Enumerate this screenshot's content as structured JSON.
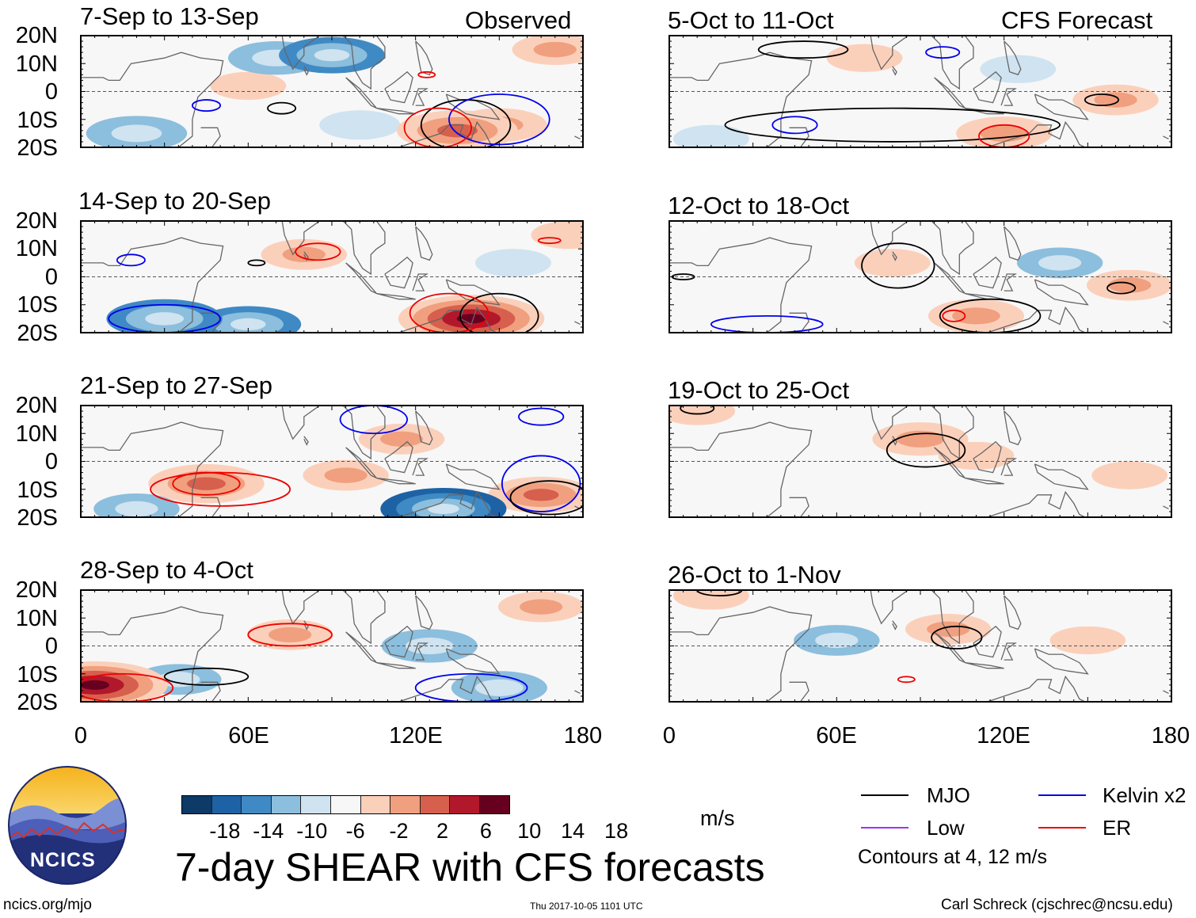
{
  "header": {
    "observed_label": "Observed",
    "forecast_label": "CFS Forecast"
  },
  "panels": [
    {
      "title": "7-Sep to 13-Sep"
    },
    {
      "title": "14-Sep to 20-Sep"
    },
    {
      "title": "21-Sep to 27-Sep"
    },
    {
      "title": "28-Sep to 4-Oct"
    },
    {
      "title": "5-Oct to 11-Oct"
    },
    {
      "title": "12-Oct to 18-Oct"
    },
    {
      "title": "19-Oct to 25-Oct"
    },
    {
      "title": "26-Oct to 1-Nov"
    }
  ],
  "axes": {
    "lat_labels": [
      "20N",
      "10N",
      "0",
      "10S",
      "20S"
    ],
    "lon_labels": [
      "0",
      "60E",
      "120E",
      "180"
    ]
  },
  "colorbar": {
    "labels": [
      "-18",
      "-14",
      "-10",
      "-6",
      "-2",
      "2",
      "6",
      "10",
      "14",
      "18"
    ],
    "colors": [
      "#0d3a66",
      "#1d62a5",
      "#3f8ac4",
      "#8cbedd",
      "#cfe3f0",
      "#f7f7f7",
      "#fbd0bb",
      "#f0a07f",
      "#d6604d",
      "#b2182b",
      "#67001f"
    ],
    "units": "m/s"
  },
  "title": "7-day SHEAR with CFS forecasts",
  "legend": {
    "items": [
      {
        "label": "MJO",
        "color": "#000000"
      },
      {
        "label": "Kelvin x2",
        "color": "#0000ee"
      },
      {
        "label": "Low",
        "color": "#9933ff"
      },
      {
        "label": "ER",
        "color": "#ee0000"
      }
    ],
    "note": "Contours at 4, 12 m/s"
  },
  "logo": {
    "text": "NCICS"
  },
  "footer": {
    "left": "ncics.org/mjo",
    "center": "Thu 2017-10-05 1101 UTC",
    "right": "Carl Schreck (cjschrec@ncsu.edu)"
  },
  "chart_data": {
    "type": "heatmap",
    "variable": "7-day vertical wind shear anomaly",
    "units": "m/s",
    "x_range": [
      0,
      180
    ],
    "y_range": [
      -20,
      20
    ],
    "x_ticks": [
      "0",
      "60E",
      "120E",
      "180"
    ],
    "y_ticks": [
      "20N",
      "10N",
      "0",
      "10S",
      "20S"
    ],
    "levels": [
      -18,
      -14,
      -10,
      -6,
      -2,
      2,
      6,
      10,
      14,
      18
    ],
    "contour_levels": [
      4,
      12
    ],
    "panels": [
      {
        "title": "7-Sep to 13-Sep",
        "source": "Observed",
        "anomalies": [
          {
            "lon": 90,
            "lat": 13,
            "value": -10
          },
          {
            "lon": 70,
            "lat": 12,
            "value": -8
          },
          {
            "lon": 20,
            "lat": -15,
            "value": -9
          },
          {
            "lon": 135,
            "lat": -14,
            "value": 13
          },
          {
            "lon": 150,
            "lat": -12,
            "value": 8
          },
          {
            "lon": 100,
            "lat": -12,
            "value": -5
          },
          {
            "lon": 60,
            "lat": 2,
            "value": 4
          },
          {
            "lon": 170,
            "lat": 15,
            "value": 6
          }
        ],
        "contours": [
          {
            "type": "MJO",
            "lon": 72,
            "lat": -6,
            "rx": 5,
            "ry": 2
          },
          {
            "type": "MJO",
            "lon": 138,
            "lat": -12,
            "rx": 16,
            "ry": 9
          },
          {
            "type": "Kelvin",
            "lon": 45,
            "lat": -5,
            "rx": 5,
            "ry": 2
          },
          {
            "type": "Kelvin",
            "lon": 150,
            "lat": -10,
            "rx": 18,
            "ry": 9
          },
          {
            "type": "ER",
            "lon": 128,
            "lat": -13,
            "rx": 12,
            "ry": 7
          },
          {
            "type": "ER",
            "lon": 124,
            "lat": 6,
            "rx": 3,
            "ry": 1
          }
        ]
      },
      {
        "title": "14-Sep to 20-Sep",
        "source": "Observed",
        "anomalies": [
          {
            "lon": 140,
            "lat": -15,
            "value": 18
          },
          {
            "lon": 80,
            "lat": 8,
            "value": 6
          },
          {
            "lon": 60,
            "lat": -17,
            "value": -10
          },
          {
            "lon": 30,
            "lat": -15,
            "value": -12
          },
          {
            "lon": 155,
            "lat": 5,
            "value": -4
          },
          {
            "lon": 175,
            "lat": 15,
            "value": 4
          }
        ],
        "contours": [
          {
            "type": "MJO",
            "lon": 150,
            "lat": -14,
            "rx": 14,
            "ry": 8
          },
          {
            "type": "MJO",
            "lon": 63,
            "lat": 5,
            "rx": 3,
            "ry": 1
          },
          {
            "type": "ER",
            "lon": 132,
            "lat": -13,
            "rx": 14,
            "ry": 7
          },
          {
            "type": "ER",
            "lon": 85,
            "lat": 9,
            "rx": 8,
            "ry": 3
          },
          {
            "type": "ER",
            "lon": 168,
            "lat": 13,
            "rx": 4,
            "ry": 1
          },
          {
            "type": "Kelvin",
            "lon": 30,
            "lat": -15,
            "rx": 20,
            "ry": 5
          },
          {
            "type": "Kelvin",
            "lon": 18,
            "lat": 6,
            "rx": 5,
            "ry": 2
          }
        ]
      },
      {
        "title": "21-Sep to 27-Sep",
        "source": "Observed",
        "anomalies": [
          {
            "lon": 45,
            "lat": -8,
            "value": 12
          },
          {
            "lon": 95,
            "lat": -5,
            "value": 6
          },
          {
            "lon": 115,
            "lat": 8,
            "value": 6
          },
          {
            "lon": 130,
            "lat": -17,
            "value": -14
          },
          {
            "lon": 165,
            "lat": -12,
            "value": 10
          },
          {
            "lon": 20,
            "lat": -17,
            "value": -6
          }
        ],
        "contours": [
          {
            "type": "ER",
            "lon": 50,
            "lat": -10,
            "rx": 25,
            "ry": 6
          },
          {
            "type": "ER",
            "lon": 45,
            "lat": -8,
            "rx": 12,
            "ry": 4
          },
          {
            "type": "Kelvin",
            "lon": 105,
            "lat": 15,
            "rx": 12,
            "ry": 5
          },
          {
            "type": "Kelvin",
            "lon": 165,
            "lat": -8,
            "rx": 14,
            "ry": 10
          },
          {
            "type": "Kelvin",
            "lon": 165,
            "lat": 16,
            "rx": 8,
            "ry": 3
          },
          {
            "type": "MJO",
            "lon": 168,
            "lat": -13,
            "rx": 14,
            "ry": 6
          }
        ]
      },
      {
        "title": "28-Sep to 4-Oct",
        "source": "Observed",
        "anomalies": [
          {
            "lon": 5,
            "lat": -14,
            "value": 18
          },
          {
            "lon": 75,
            "lat": 4,
            "value": 6
          },
          {
            "lon": 125,
            "lat": 0,
            "value": -8
          },
          {
            "lon": 150,
            "lat": -15,
            "value": -8
          },
          {
            "lon": 165,
            "lat": 14,
            "value": 6
          },
          {
            "lon": 35,
            "lat": -12,
            "value": -6
          }
        ],
        "contours": [
          {
            "type": "ER",
            "lon": 15,
            "lat": -15,
            "rx": 18,
            "ry": 5
          },
          {
            "type": "ER",
            "lon": 75,
            "lat": 4,
            "rx": 15,
            "ry": 4
          },
          {
            "type": "MJO",
            "lon": 45,
            "lat": -11,
            "rx": 15,
            "ry": 3
          },
          {
            "type": "Kelvin",
            "lon": 140,
            "lat": -15,
            "rx": 20,
            "ry": 5
          }
        ]
      },
      {
        "title": "5-Oct to 11-Oct",
        "source": "CFS Forecast",
        "anomalies": [
          {
            "lon": 70,
            "lat": 12,
            "value": 4
          },
          {
            "lon": 120,
            "lat": -15,
            "value": 8
          },
          {
            "lon": 160,
            "lat": -3,
            "value": 6
          },
          {
            "lon": 15,
            "lat": -17,
            "value": -4
          },
          {
            "lon": 125,
            "lat": 8,
            "value": -4
          }
        ],
        "contours": [
          {
            "type": "MJO",
            "lon": 48,
            "lat": 15,
            "rx": 16,
            "ry": 3
          },
          {
            "type": "MJO",
            "lon": 155,
            "lat": -3,
            "rx": 6,
            "ry": 2
          },
          {
            "type": "MJO",
            "lon": 80,
            "lat": -12,
            "rx": 60,
            "ry": 6
          },
          {
            "type": "ER",
            "lon": 120,
            "lat": -16,
            "rx": 9,
            "ry": 4
          },
          {
            "type": "Kelvin",
            "lon": 45,
            "lat": -12,
            "rx": 8,
            "ry": 3
          },
          {
            "type": "Kelvin",
            "lon": 98,
            "lat": 14,
            "rx": 6,
            "ry": 2
          }
        ]
      },
      {
        "title": "12-Oct to 18-Oct",
        "source": "CFS Forecast",
        "anomalies": [
          {
            "lon": 80,
            "lat": 5,
            "value": 4
          },
          {
            "lon": 110,
            "lat": -14,
            "value": 8
          },
          {
            "lon": 165,
            "lat": -3,
            "value": 6
          },
          {
            "lon": 140,
            "lat": 5,
            "value": -6
          }
        ],
        "contours": [
          {
            "type": "MJO",
            "lon": 82,
            "lat": 4,
            "rx": 13,
            "ry": 8
          },
          {
            "type": "MJO",
            "lon": 115,
            "lat": -14,
            "rx": 18,
            "ry": 6
          },
          {
            "type": "MJO",
            "lon": 162,
            "lat": -4,
            "rx": 5,
            "ry": 2
          },
          {
            "type": "MJO",
            "lon": 5,
            "lat": 0,
            "rx": 4,
            "ry": 1
          },
          {
            "type": "ER",
            "lon": 102,
            "lat": -14,
            "rx": 4,
            "ry": 2
          },
          {
            "type": "Kelvin",
            "lon": 35,
            "lat": -17,
            "rx": 20,
            "ry": 3
          }
        ]
      },
      {
        "title": "19-Oct to 25-Oct",
        "source": "CFS Forecast",
        "anomalies": [
          {
            "lon": 90,
            "lat": 8,
            "value": 8
          },
          {
            "lon": 110,
            "lat": 2,
            "value": 4
          },
          {
            "lon": 10,
            "lat": 18,
            "value": 4
          },
          {
            "lon": 165,
            "lat": -5,
            "value": 4
          }
        ],
        "contours": [
          {
            "type": "MJO",
            "lon": 92,
            "lat": 4,
            "rx": 14,
            "ry": 6
          },
          {
            "type": "MJO",
            "lon": 10,
            "lat": 19,
            "rx": 6,
            "ry": 2
          }
        ]
      },
      {
        "title": "26-Oct to 1-Nov",
        "source": "CFS Forecast",
        "anomalies": [
          {
            "lon": 100,
            "lat": 6,
            "value": 6
          },
          {
            "lon": 60,
            "lat": 2,
            "value": -6
          },
          {
            "lon": 15,
            "lat": 18,
            "value": 4
          },
          {
            "lon": 150,
            "lat": 2,
            "value": 4
          }
        ],
        "contours": [
          {
            "type": "MJO",
            "lon": 103,
            "lat": 3,
            "rx": 9,
            "ry": 4
          },
          {
            "type": "MJO",
            "lon": 18,
            "lat": 20,
            "rx": 8,
            "ry": 2
          },
          {
            "type": "ER",
            "lon": 85,
            "lat": -12,
            "rx": 3,
            "ry": 1
          }
        ]
      }
    ]
  }
}
